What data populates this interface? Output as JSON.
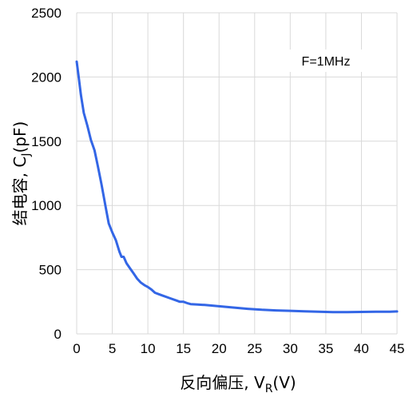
{
  "chart_data": {
    "type": "line",
    "title": "",
    "xlabel": {
      "main": "反向偏压, V",
      "sub": "R",
      "tail": "(V)"
    },
    "ylabel": {
      "main": "结电容, C",
      "sub": "J",
      "tail": "(pF)"
    },
    "annotation": "F=1MHz",
    "xlim": [
      0,
      45
    ],
    "ylim": [
      0,
      2500
    ],
    "x_ticks": [
      0,
      5,
      10,
      15,
      20,
      25,
      30,
      35,
      40,
      45
    ],
    "y_ticks": [
      0,
      500,
      1000,
      1500,
      2000,
      2500
    ],
    "grid": true,
    "line_color": "#3366e6",
    "grid_color": "#d9d9d9",
    "series": [
      {
        "x": [
          0,
          0.3,
          0.6,
          1,
          1.5,
          2,
          2.5,
          3,
          3.5,
          4,
          4.5,
          5,
          5.5,
          6,
          6.3,
          6.6,
          7,
          7.5,
          8,
          8.5,
          9,
          9.5,
          10,
          10.5,
          11,
          11.5,
          12,
          13,
          14,
          14.5,
          15,
          15.5,
          16,
          17,
          18,
          20,
          22,
          24,
          26,
          28,
          30,
          32,
          34,
          36,
          38,
          40,
          42,
          44,
          45
        ],
        "y": [
          2120,
          1990,
          1860,
          1720,
          1620,
          1510,
          1430,
          1300,
          1160,
          1010,
          860,
          790,
          730,
          640,
          600,
          600,
          550,
          510,
          470,
          430,
          400,
          380,
          365,
          345,
          320,
          310,
          300,
          280,
          260,
          250,
          250,
          240,
          232,
          228,
          225,
          215,
          205,
          195,
          188,
          183,
          180,
          176,
          172,
          170,
          170,
          171,
          172,
          173,
          175
        ]
      }
    ]
  }
}
